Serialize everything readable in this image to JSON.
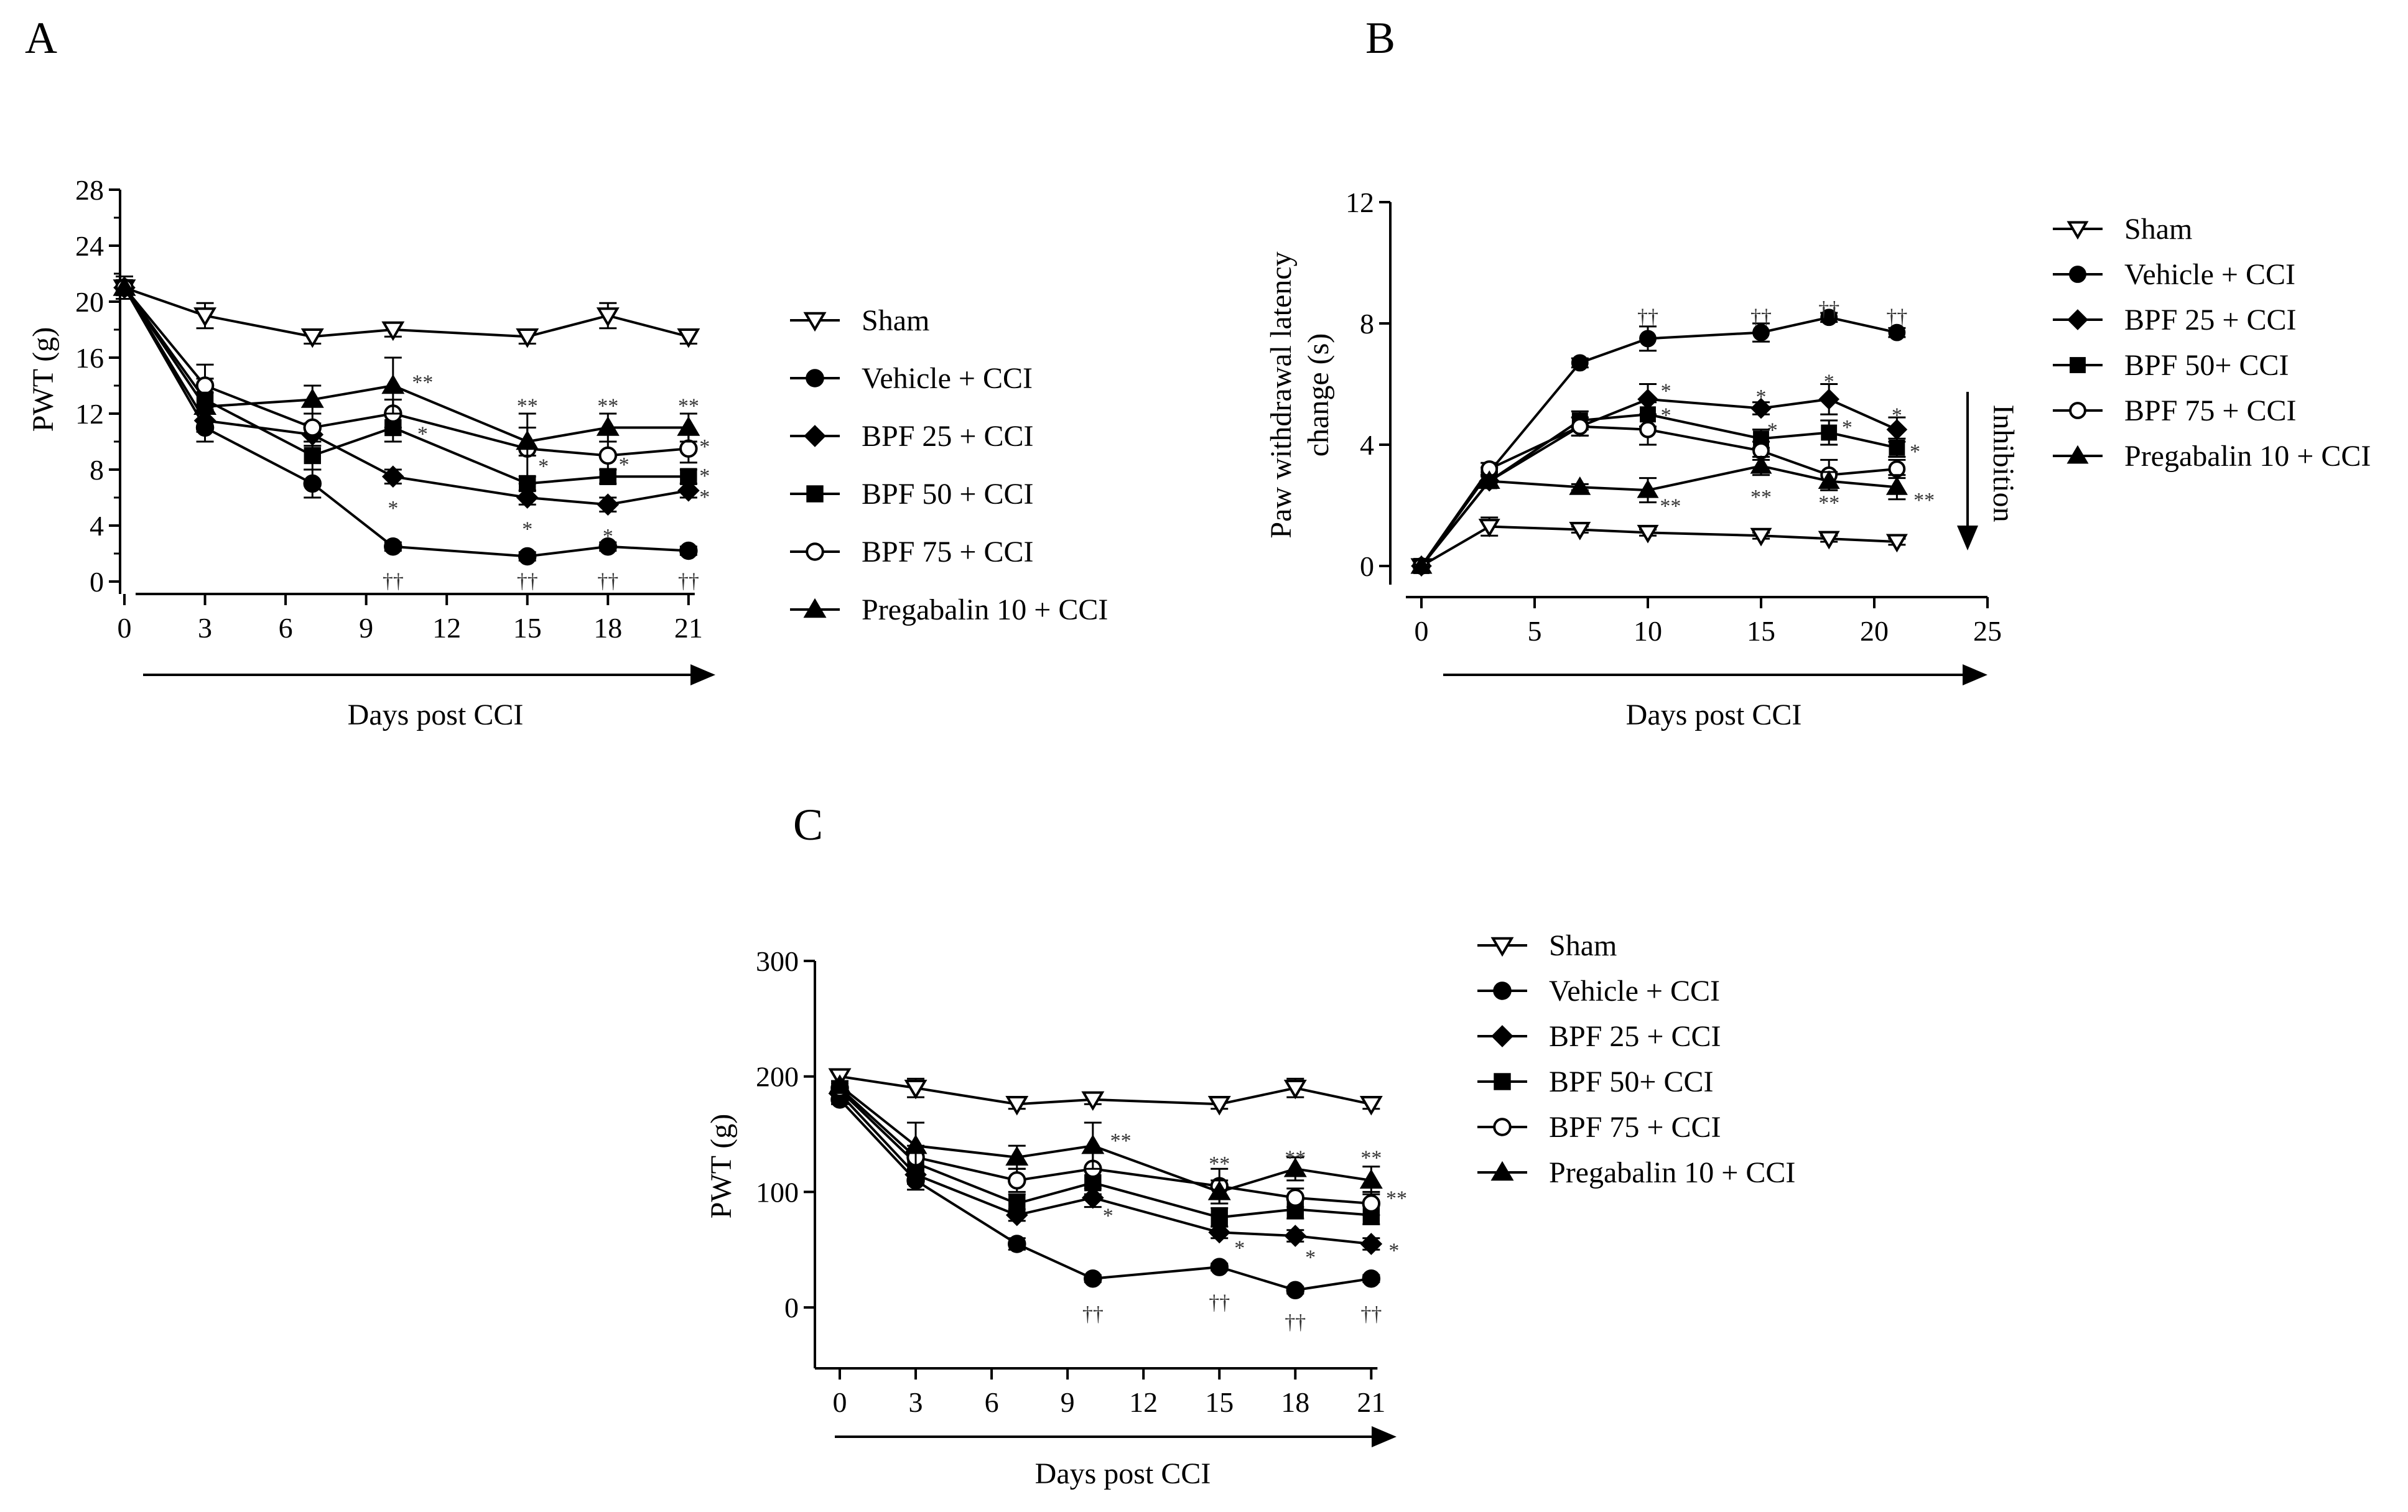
{
  "colors": {
    "ink": "#000000",
    "sig": "#333333"
  },
  "marker_icons": {
    "Sham": "open-down-triangle",
    "Vehicle + CCI": "filled-circle",
    "BPF 25 + CCI": "filled-diamond",
    "BPF 50 + CCI": "filled-square",
    "BPF 75 + CCI": "open-circle",
    "Pregabalin 10 + CCI": "filled-up-triangle"
  },
  "chart_data": [
    {
      "id": "A",
      "panel_label": "A",
      "type": "line",
      "xlabel": "Days post CCI",
      "ylabel": "PWT (g)",
      "xlim": [
        0,
        22
      ],
      "ylim": [
        0,
        28
      ],
      "xticks": [
        0,
        3,
        6,
        9,
        12,
        15,
        18,
        21
      ],
      "yticks": [
        0,
        4,
        8,
        12,
        16,
        20,
        24,
        28
      ],
      "legend": [
        "Sham",
        "Vehicle + CCI",
        "BPF 25 + CCI",
        "BPF 50 + CCI",
        "BPF 75 + CCI",
        "Pregabalin 10 + CCI"
      ],
      "series": [
        {
          "name": "Sham",
          "marker": "tri_down_open",
          "x": [
            0,
            3,
            7,
            10,
            15,
            18,
            21
          ],
          "y": [
            21,
            19,
            17.5,
            18,
            17.5,
            19,
            17.5
          ],
          "err": [
            0.8,
            0.9,
            0.5,
            0.5,
            0.5,
            0.9,
            0.5
          ]
        },
        {
          "name": "Vehicle + CCI",
          "marker": "circle_filled",
          "x": [
            0,
            3,
            7,
            10,
            15,
            18,
            21
          ],
          "y": [
            21,
            11,
            7,
            2.5,
            1.8,
            2.5,
            2.2
          ],
          "err": [
            0.8,
            1.0,
            1.0,
            0.3,
            0.3,
            0.3,
            0.3
          ]
        },
        {
          "name": "BPF 25 + CCI",
          "marker": "diamond_filled",
          "x": [
            0,
            3,
            7,
            10,
            15,
            18,
            21
          ],
          "y": [
            21,
            11.5,
            10.5,
            7.5,
            6,
            5.5,
            6.5
          ],
          "err": [
            0.8,
            0.8,
            0.8,
            0.5,
            0.5,
            0.5,
            0.5
          ]
        },
        {
          "name": "BPF 50 + CCI",
          "marker": "square_filled",
          "x": [
            0,
            3,
            7,
            10,
            15,
            18,
            21
          ],
          "y": [
            21,
            13,
            9,
            11,
            7,
            7.5,
            7.5
          ],
          "err": [
            0.8,
            1.5,
            1.0,
            1.0,
            0.5,
            0.5,
            0.5
          ]
        },
        {
          "name": "BPF 75 + CCI",
          "marker": "circle_open",
          "x": [
            0,
            3,
            7,
            10,
            15,
            18,
            21
          ],
          "y": [
            21,
            14,
            11,
            12,
            9.5,
            9,
            9.5
          ],
          "err": [
            0.8,
            1.5,
            1.0,
            1.0,
            2.5,
            1.0,
            1.0
          ]
        },
        {
          "name": "Pregabalin 10 + CCI",
          "marker": "tri_up_filled",
          "x": [
            0,
            3,
            7,
            10,
            15,
            18,
            21
          ],
          "y": [
            21,
            12.5,
            13,
            14,
            10,
            11,
            11
          ],
          "err": [
            0.8,
            1.0,
            1.0,
            2.0,
            1.0,
            1.0,
            1.0
          ]
        }
      ],
      "annotations": [
        {
          "text": "††",
          "x": 10,
          "y": 0.1
        },
        {
          "text": "††",
          "x": 15,
          "y": 0.1
        },
        {
          "text": "††",
          "x": 18,
          "y": 0.1
        },
        {
          "text": "††",
          "x": 21,
          "y": 0.1
        },
        {
          "text": "**",
          "x": 11.1,
          "y": 14.3
        },
        {
          "text": "*",
          "x": 11.1,
          "y": 10.6
        },
        {
          "text": "*",
          "x": 10,
          "y": 5.3
        },
        {
          "text": "**",
          "x": 15,
          "y": 12.6
        },
        {
          "text": "*",
          "x": 15.6,
          "y": 8.3
        },
        {
          "text": "*",
          "x": 15,
          "y": 3.8
        },
        {
          "text": "**",
          "x": 18,
          "y": 12.6
        },
        {
          "text": "*",
          "x": 18.6,
          "y": 8.4
        },
        {
          "text": "*",
          "x": 18,
          "y": 3.3
        },
        {
          "text": "**",
          "x": 21,
          "y": 12.6
        },
        {
          "text": "*",
          "x": 21.6,
          "y": 9.7
        },
        {
          "text": "*",
          "x": 21.6,
          "y": 7.6
        },
        {
          "text": "*",
          "x": 21.6,
          "y": 6.1
        }
      ]
    },
    {
      "id": "B",
      "panel_label": "B",
      "type": "line",
      "xlabel": "Days post CCI",
      "ylabel_lines": [
        "Paw withdrawal latency",
        "change (s)"
      ],
      "xlim": [
        0,
        25
      ],
      "ylim": [
        0,
        12
      ],
      "xticks": [
        0,
        5,
        10,
        15,
        20,
        25
      ],
      "yticks": [
        0,
        4,
        8,
        12
      ],
      "inhibition_label": "Inhibition",
      "legend": [
        "Sham",
        "Vehicle + CCI",
        "BPF 25 + CCI",
        "BPF 50+ CCI",
        "BPF 75 + CCI",
        "Pregabalin 10 + CCI"
      ],
      "series": [
        {
          "name": "Sham",
          "marker": "tri_down_open",
          "x": [
            0,
            3,
            7,
            10,
            15,
            18,
            21
          ],
          "y": [
            0,
            1.3,
            1.2,
            1.1,
            1.0,
            0.9,
            0.8
          ],
          "err": [
            0.05,
            0.3,
            0.1,
            0.1,
            0.1,
            0.1,
            0.1
          ]
        },
        {
          "name": "Vehicle + CCI",
          "marker": "circle_filled",
          "x": [
            0,
            3,
            7,
            10,
            15,
            18,
            21
          ],
          "y": [
            0,
            3.1,
            6.7,
            7.5,
            7.7,
            8.2,
            7.7
          ],
          "err": [
            0.05,
            0.15,
            0.15,
            0.4,
            0.3,
            0.15,
            0.15
          ]
        },
        {
          "name": "BPF 25 + CCI",
          "marker": "diamond_filled",
          "x": [
            0,
            3,
            7,
            10,
            15,
            18,
            21
          ],
          "y": [
            0,
            2.8,
            4.6,
            5.5,
            5.2,
            5.5,
            4.5
          ],
          "err": [
            0.05,
            0.2,
            0.3,
            0.5,
            0.2,
            0.5,
            0.4
          ]
        },
        {
          "name": "BPF 50+ CCI",
          "marker": "square_filled",
          "x": [
            0,
            3,
            7,
            10,
            15,
            18,
            21
          ],
          "y": [
            0,
            2.8,
            4.8,
            5.0,
            4.2,
            4.4,
            3.9
          ],
          "err": [
            0.05,
            0.2,
            0.3,
            0.4,
            0.3,
            0.4,
            0.3
          ]
        },
        {
          "name": "BPF 75 + CCI",
          "marker": "circle_open",
          "x": [
            0,
            3,
            7,
            10,
            15,
            18,
            21
          ],
          "y": [
            0,
            3.2,
            4.6,
            4.5,
            3.8,
            3.0,
            3.2
          ],
          "err": [
            0.05,
            0.2,
            0.3,
            0.5,
            0.3,
            0.5,
            0.3
          ]
        },
        {
          "name": "Pregabalin 10 + CCI",
          "marker": "tri_up_filled",
          "x": [
            0,
            3,
            7,
            10,
            15,
            18,
            21
          ],
          "y": [
            0,
            2.8,
            2.6,
            2.5,
            3.3,
            2.8,
            2.6
          ],
          "err": [
            0.05,
            0.2,
            0.1,
            0.4,
            0.3,
            0.3,
            0.4
          ]
        }
      ],
      "annotations": [
        {
          "text": "††",
          "x": 10,
          "y": 8.25
        },
        {
          "text": "††",
          "x": 15,
          "y": 8.25
        },
        {
          "text": "††",
          "x": 18,
          "y": 8.5
        },
        {
          "text": "††",
          "x": 21,
          "y": 8.25
        },
        {
          "text": "*",
          "x": 10.8,
          "y": 5.8
        },
        {
          "text": "*",
          "x": 10.8,
          "y": 5.0
        },
        {
          "text": "**",
          "x": 11.0,
          "y": 2.0
        },
        {
          "text": "*",
          "x": 15,
          "y": 5.6
        },
        {
          "text": "*",
          "x": 15.5,
          "y": 4.5
        },
        {
          "text": "**",
          "x": 15,
          "y": 2.3
        },
        {
          "text": "*",
          "x": 18,
          "y": 6.1
        },
        {
          "text": "*",
          "x": 18.8,
          "y": 4.6
        },
        {
          "text": "**",
          "x": 18,
          "y": 2.1
        },
        {
          "text": "*",
          "x": 21,
          "y": 5.0
        },
        {
          "text": "*",
          "x": 21.8,
          "y": 3.8
        },
        {
          "text": "**",
          "x": 22.2,
          "y": 2.2
        }
      ]
    },
    {
      "id": "C",
      "panel_label": "C",
      "type": "line",
      "xlabel": "Days post CCI",
      "ylabel": "PWT (g)",
      "xlim": [
        0,
        22
      ],
      "ylim": [
        -50,
        300
      ],
      "xticks": [
        0,
        3,
        6,
        9,
        12,
        15,
        18,
        21
      ],
      "yticks": [
        0,
        100,
        200,
        300
      ],
      "legend": [
        "Sham",
        "Vehicle + CCI",
        "BPF 25 + CCI",
        "BPF 50+ CCI",
        "BPF 75 + CCI",
        "Pregabalin 10 + CCI"
      ],
      "series": [
        {
          "name": "Sham",
          "marker": "tri_down_open",
          "x": [
            0,
            3,
            7,
            10,
            15,
            18,
            21
          ],
          "y": [
            200,
            190,
            176,
            180,
            176,
            190,
            176
          ],
          "err": [
            4,
            8,
            4,
            4,
            4,
            8,
            4
          ]
        },
        {
          "name": "Vehicle + CCI",
          "marker": "circle_filled",
          "x": [
            0,
            3,
            7,
            10,
            15,
            18,
            21
          ],
          "y": [
            180,
            110,
            55,
            25,
            35,
            15,
            25
          ],
          "err": [
            4,
            8,
            5,
            3,
            3,
            3,
            3
          ]
        },
        {
          "name": "BPF 25 + CCI",
          "marker": "diamond_filled",
          "x": [
            0,
            3,
            7,
            10,
            15,
            18,
            21
          ],
          "y": [
            185,
            115,
            80,
            95,
            65,
            62,
            55
          ],
          "err": [
            4,
            8,
            5,
            8,
            5,
            5,
            5
          ]
        },
        {
          "name": "BPF 50+ CCI",
          "marker": "square_filled",
          "x": [
            0,
            3,
            7,
            10,
            15,
            18,
            21
          ],
          "y": [
            188,
            125,
            90,
            108,
            78,
            85,
            80
          ],
          "err": [
            4,
            10,
            8,
            10,
            8,
            8,
            8
          ]
        },
        {
          "name": "BPF 75 + CCI",
          "marker": "circle_open",
          "x": [
            0,
            3,
            7,
            10,
            15,
            18,
            21
          ],
          "y": [
            190,
            130,
            110,
            120,
            105,
            95,
            90
          ],
          "err": [
            4,
            10,
            10,
            15,
            15,
            8,
            10
          ]
        },
        {
          "name": "Pregabalin 10 + CCI",
          "marker": "tri_up_filled",
          "x": [
            0,
            3,
            7,
            10,
            15,
            18,
            21
          ],
          "y": [
            192,
            140,
            130,
            140,
            100,
            120,
            110
          ],
          "err": [
            4,
            20,
            10,
            20,
            10,
            10,
            12
          ]
        }
      ],
      "annotations": [
        {
          "text": "††",
          "x": 10,
          "y": -5
        },
        {
          "text": "††",
          "x": 15,
          "y": 5
        },
        {
          "text": "††",
          "x": 18,
          "y": -12
        },
        {
          "text": "††",
          "x": 21,
          "y": -5
        },
        {
          "text": "**",
          "x": 11.1,
          "y": 145
        },
        {
          "text": "*",
          "x": 10.6,
          "y": 80
        },
        {
          "text": "**",
          "x": 15,
          "y": 125
        },
        {
          "text": "*",
          "x": 15.8,
          "y": 52
        },
        {
          "text": "**",
          "x": 18,
          "y": 130
        },
        {
          "text": "*",
          "x": 18.6,
          "y": 44
        },
        {
          "text": "**",
          "x": 21,
          "y": 130
        },
        {
          "text": "**",
          "x": 22.0,
          "y": 95
        },
        {
          "text": "*",
          "x": 21.9,
          "y": 50
        }
      ]
    }
  ]
}
